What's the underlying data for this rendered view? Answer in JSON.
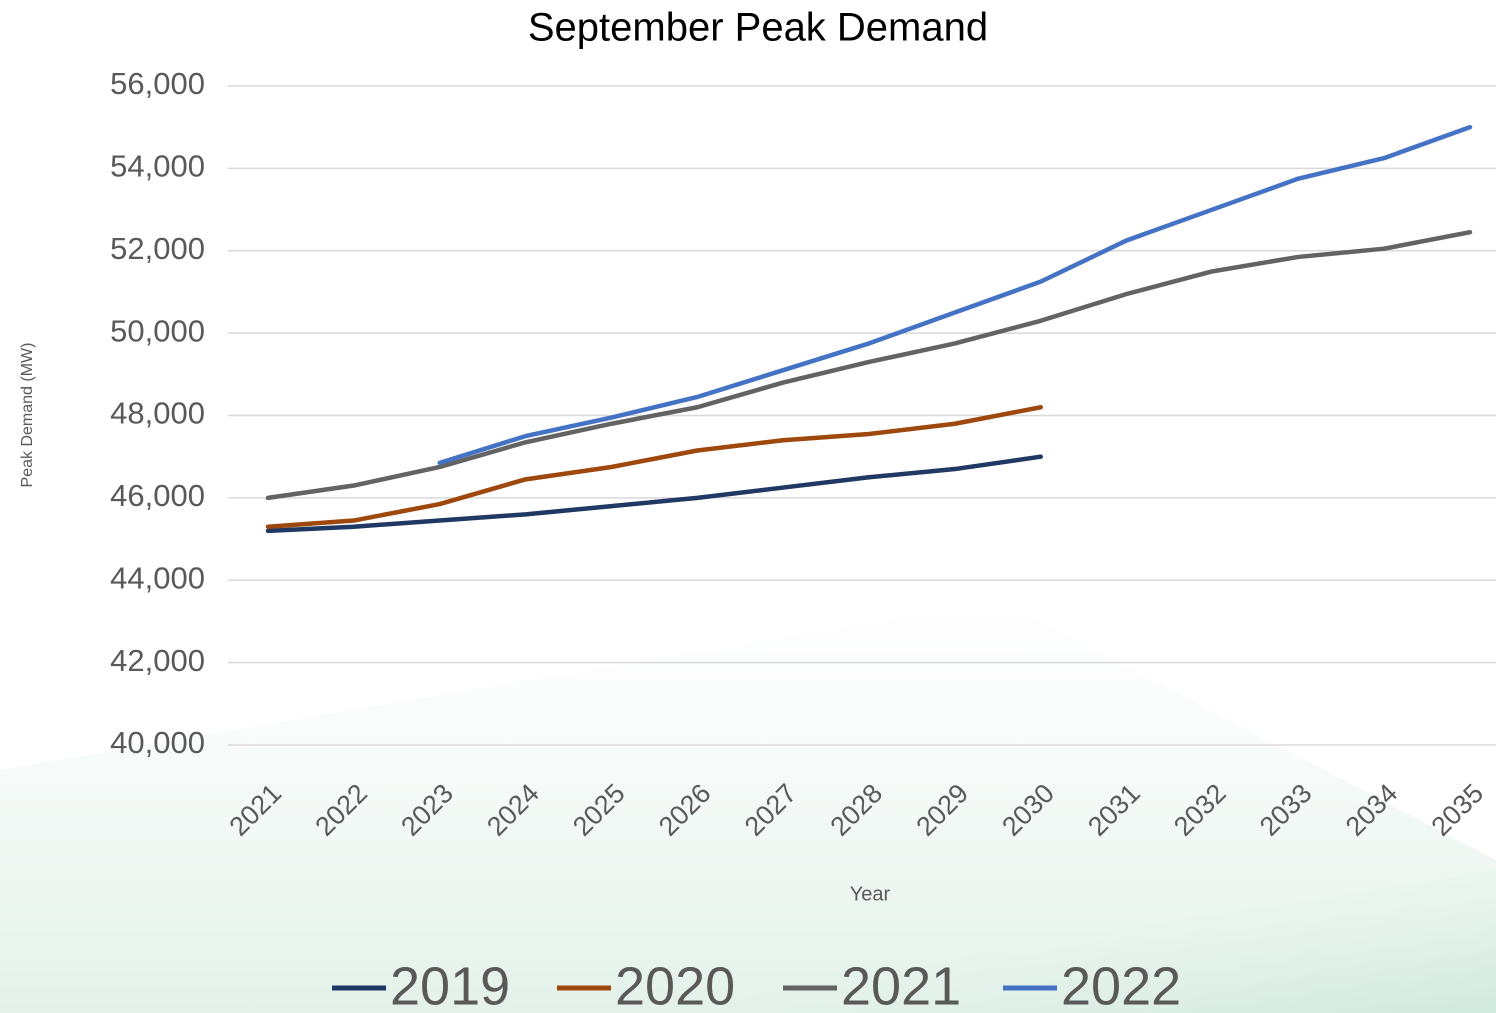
{
  "chart_data": {
    "type": "line",
    "title": "September Peak Demand",
    "x_label": "Year",
    "y_label": "Peak Demand (MW)",
    "categories": [
      "2021",
      "2022",
      "2023",
      "2024",
      "2025",
      "2026",
      "2027",
      "2028",
      "2029",
      "2030",
      "2031",
      "2032",
      "2033",
      "2034",
      "2035"
    ],
    "series": [
      {
        "name": "2019",
        "color": "#203864",
        "values": [
          45200,
          45300,
          45450,
          45600,
          45800,
          46000,
          46250,
          46500,
          46700,
          47000,
          null,
          null,
          null,
          null,
          null
        ]
      },
      {
        "name": "2020",
        "color": "#9e480e",
        "values": [
          45300,
          45450,
          45850,
          46450,
          46750,
          47150,
          47400,
          47550,
          47800,
          48200,
          null,
          null,
          null,
          null,
          null
        ]
      },
      {
        "name": "2021",
        "color": "#636363",
        "values": [
          46000,
          46300,
          46750,
          47350,
          47800,
          48200,
          48800,
          49300,
          49750,
          50300,
          50950,
          51500,
          51850,
          52050,
          52450
        ]
      },
      {
        "name": "2022",
        "color": "#4472c4",
        "values": [
          null,
          null,
          46850,
          47500,
          47950,
          48450,
          49100,
          49750,
          50500,
          51250,
          52250,
          53000,
          53750,
          54250,
          55000
        ]
      }
    ],
    "ylim": [
      40000,
      56000
    ],
    "yticks": [
      {
        "value": 40000,
        "label": "40,000"
      },
      {
        "value": 42000,
        "label": "42,000"
      },
      {
        "value": 44000,
        "label": "44,000"
      },
      {
        "value": 46000,
        "label": "46,000"
      },
      {
        "value": 48000,
        "label": "48,000"
      },
      {
        "value": 50000,
        "label": "50,000"
      },
      {
        "value": 52000,
        "label": "52,000"
      },
      {
        "value": 54000,
        "label": "54,000"
      },
      {
        "value": 56000,
        "label": "56,000"
      }
    ],
    "grid": true,
    "legend": "bottom"
  }
}
